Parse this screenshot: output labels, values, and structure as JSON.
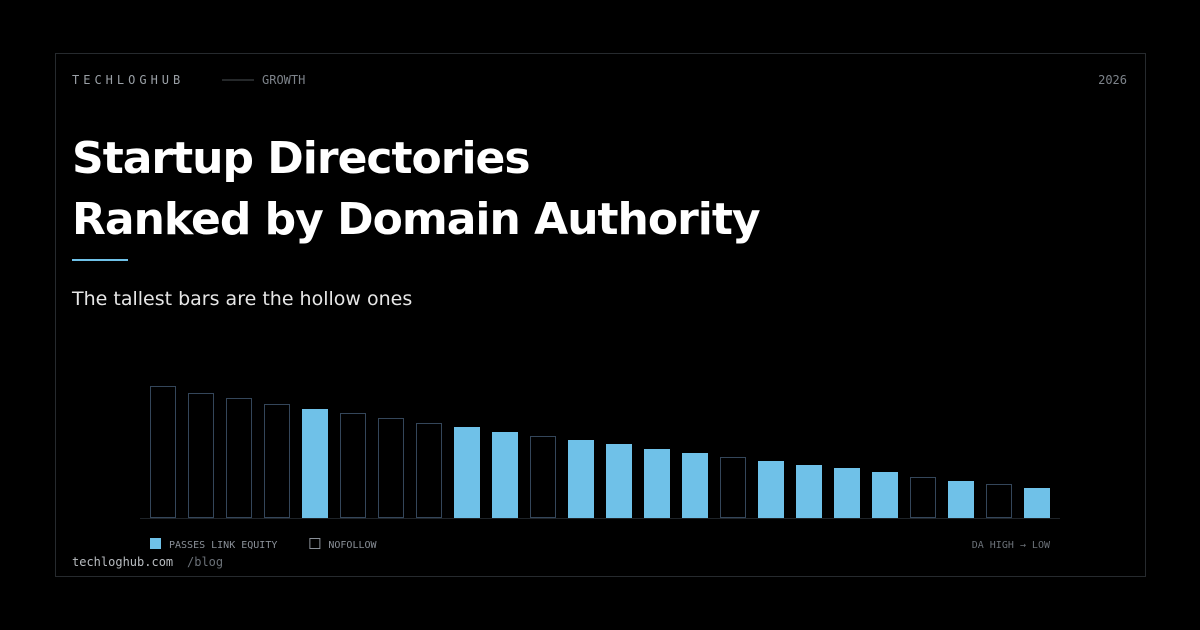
{
  "header": {
    "brand": "TECHLOGHUB",
    "section": "GROWTH",
    "year": "2026"
  },
  "title_lines": [
    "Startup Directories",
    "Ranked by Domain Authority"
  ],
  "subtitle": "The tallest bars are the hollow ones",
  "chart_data": {
    "type": "bar",
    "series": [
      {
        "name": "PASSES LINK EQUITY",
        "color": "#6fc1e8",
        "filled": true,
        "values": [
          null,
          null,
          null,
          null,
          109,
          null,
          null,
          null,
          91,
          86,
          null,
          78,
          74,
          69,
          65,
          null,
          57,
          53,
          50,
          46,
          null,
          37,
          null,
          30
        ]
      },
      {
        "name": "NOFOLLOW",
        "color": "#34465a",
        "filled": false,
        "values": [
          132,
          125,
          120,
          114,
          null,
          105,
          100,
          95,
          null,
          null,
          82,
          null,
          null,
          null,
          null,
          61,
          null,
          null,
          null,
          null,
          41,
          null,
          34,
          null
        ]
      }
    ],
    "ylim": [
      0,
      132
    ],
    "axis_note": "DA HIGH → LOW"
  },
  "footer": {
    "site": "techloghub.com",
    "path": "/blog"
  }
}
